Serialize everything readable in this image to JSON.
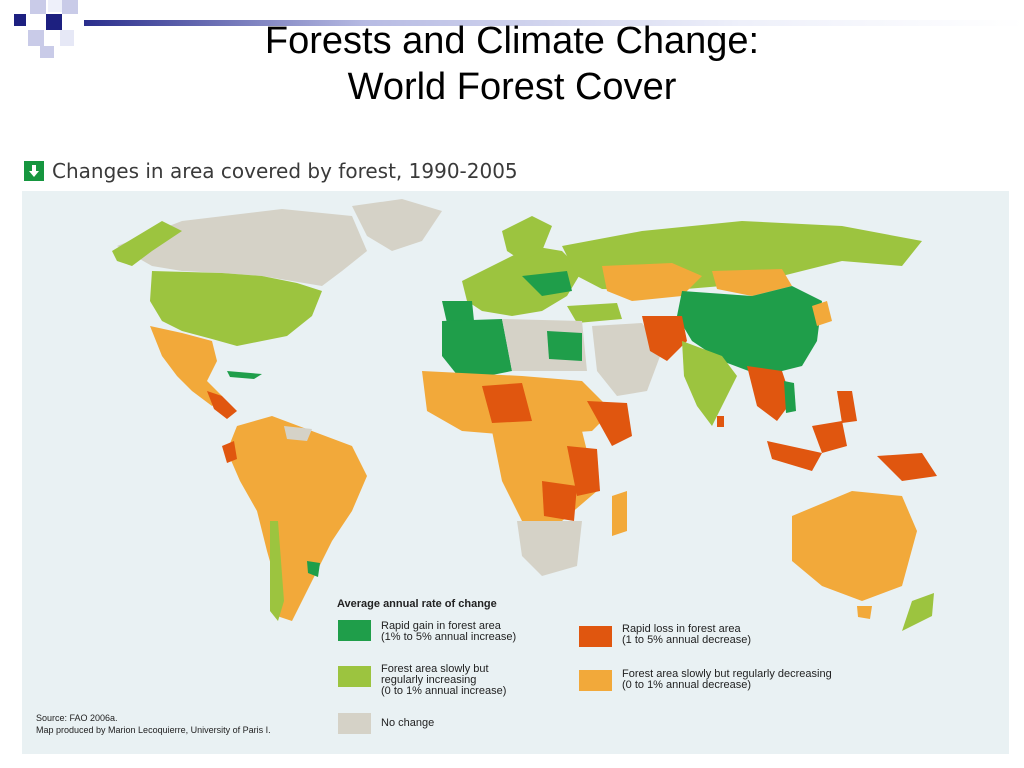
{
  "slide": {
    "title_line1": "Forests and Climate Change:",
    "title_line2": "World Forest Cover"
  },
  "map": {
    "heading": "Changes in area covered by forest, 1990-2005",
    "heading_icon": "down-arrow-icon",
    "colors": {
      "rapid_gain": "#1f9e4a",
      "slow_gain": "#9cc43f",
      "no_change": "#d5d2c7",
      "rapid_loss": "#e0560f",
      "slow_loss": "#f2a93a",
      "ocean": "#e9f1f3"
    },
    "legend": {
      "title": "Average annual rate of change",
      "items": [
        {
          "key": "rapid_gain",
          "label_line1": "Rapid gain in forest area",
          "label_line2": "(1% to 5% annual increase)"
        },
        {
          "key": "slow_gain",
          "label_line1": "Forest area slowly but",
          "label_line2": "regularly increasing",
          "label_line3": "(0 to 1% annual increase)"
        },
        {
          "key": "no_change",
          "label_line1": "No change"
        },
        {
          "key": "rapid_loss",
          "label_line1": "Rapid loss in forest area",
          "label_line2": "(1 to 5% annual decrease)"
        },
        {
          "key": "slow_loss",
          "label_line1": "Forest area slowly but regularly decreasing",
          "label_line2": "(0 to 1% annual decrease)"
        }
      ]
    },
    "source_line1": "Source: FAO 2006a.",
    "source_line2": "Map produced by Marion Lecoquierre, University of Paris I."
  }
}
